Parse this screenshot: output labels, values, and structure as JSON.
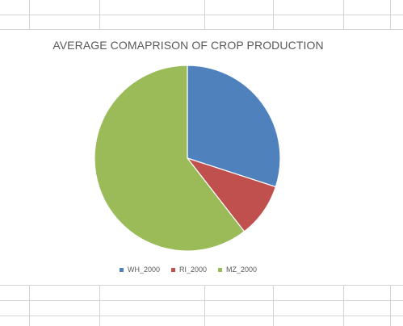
{
  "chart_data": {
    "type": "pie",
    "title": "AVERAGE COMAPRISON OF CROP PRODUCTION",
    "categories": [
      "WH_2000",
      "RI_2000",
      "MZ_2000"
    ],
    "values": [
      30,
      9.5,
      60.5
    ],
    "colors": [
      "#4f81bd",
      "#c0504d",
      "#9bbb59"
    ],
    "legend_position": "bottom",
    "start_angle_deg": 0,
    "direction": "clockwise"
  }
}
